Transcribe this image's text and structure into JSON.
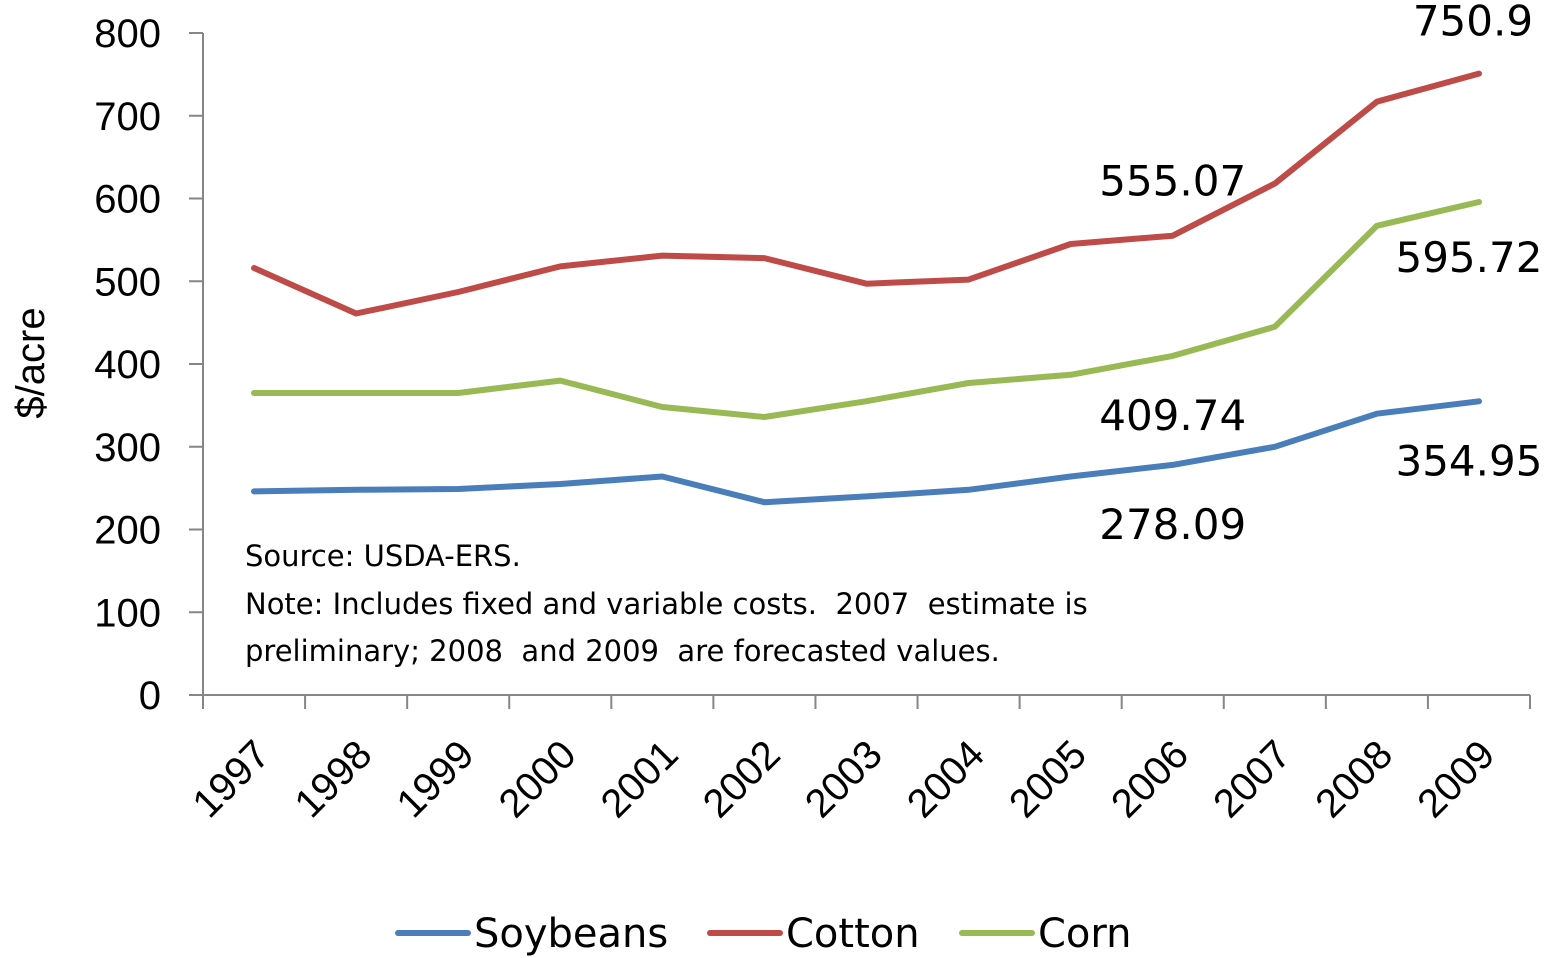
{
  "chart_data": {
    "type": "line",
    "ylabel": "$/acre",
    "ylim": [
      0,
      800
    ],
    "yticks": [
      "0",
      "100",
      "200",
      "300",
      "400",
      "500",
      "600",
      "700",
      "800"
    ],
    "categories": [
      "1997",
      "1998",
      "1999",
      "2000",
      "2001",
      "2002",
      "2003",
      "2004",
      "2005",
      "2006",
      "2007",
      "2008",
      "2009"
    ],
    "series": [
      {
        "name": "Soybeans",
        "color": "#4a7ebb",
        "values": [
          246,
          248,
          249,
          255,
          264,
          233,
          240,
          248,
          264,
          278.09,
          300,
          340,
          354.95
        ]
      },
      {
        "name": "Cotton",
        "color": "#be4b48",
        "values": [
          516,
          461,
          487,
          518,
          531,
          528,
          497,
          502,
          545,
          555.07,
          618,
          717,
          750.9
        ]
      },
      {
        "name": "Corn",
        "color": "#98b954",
        "values": [
          365,
          365,
          365,
          380,
          348,
          336,
          355,
          377,
          387,
          409.74,
          445,
          567,
          595.72
        ]
      }
    ],
    "annotations": [
      {
        "text": "750.9",
        "series": "Cotton",
        "category": "2009"
      },
      {
        "text": "555.07",
        "series": "Cotton",
        "category": "2006"
      },
      {
        "text": "595.72",
        "series": "Corn",
        "category": "2009"
      },
      {
        "text": "409.74",
        "series": "Corn",
        "category": "2006"
      },
      {
        "text": "354.95",
        "series": "Soybeans",
        "category": "2009"
      },
      {
        "text": "278.09",
        "series": "Soybeans",
        "category": "2006"
      }
    ],
    "notes": [
      "Source: USDA-ERS.",
      "Note: Includes fixed and variable costs.  2007  estimate is",
      "preliminary; 2008  and 2009  are forecasted values."
    ],
    "legend": {
      "placement": "bottom",
      "items": [
        "Soybeans",
        "Cotton",
        "Corn"
      ]
    },
    "grid": false
  }
}
